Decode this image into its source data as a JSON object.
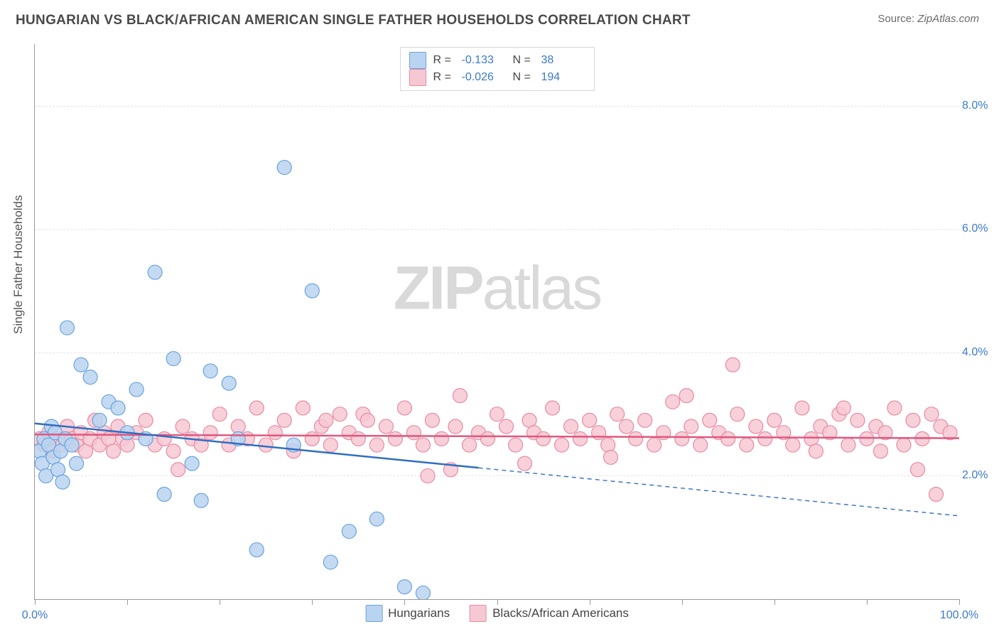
{
  "title": "HUNGARIAN VS BLACK/AFRICAN AMERICAN SINGLE FATHER HOUSEHOLDS CORRELATION CHART",
  "source_label": "Source:",
  "source_name": "ZipAtlas.com",
  "ylabel": "Single Father Households",
  "watermark_bold": "ZIP",
  "watermark_light": "atlas",
  "chart": {
    "type": "scatter-with-trend",
    "xlim": [
      0,
      100
    ],
    "ylim": [
      0,
      9
    ],
    "xticks": [
      0,
      10,
      20,
      30,
      40,
      50,
      60,
      70,
      80,
      90,
      100
    ],
    "xticklabels": {
      "0": "0.0%",
      "100": "100.0%"
    },
    "yticks": [
      2,
      4,
      6,
      8
    ],
    "yticklabels": [
      "2.0%",
      "4.0%",
      "6.0%",
      "8.0%"
    ],
    "background_color": "#ffffff",
    "grid_color": "#e4e4e4",
    "axis_color": "#9a9a9a",
    "tick_label_color": "#3b7ac9",
    "marker_radius": 10,
    "marker_stroke_width": 1.2,
    "trend_solid_width": 2.5,
    "trend_dash_width": 1.4,
    "trend_dash_pattern": "6,5",
    "series": [
      {
        "name": "Hungarians",
        "legend_label": "Hungarians",
        "fill": "#b9d4f0",
        "stroke": "#6aa3dd",
        "trend_color": "#2f6fc2",
        "R": "-0.133",
        "N": "38",
        "points": [
          [
            0.5,
            2.4
          ],
          [
            0.8,
            2.2
          ],
          [
            1.0,
            2.6
          ],
          [
            1.2,
            2.0
          ],
          [
            1.5,
            2.5
          ],
          [
            1.8,
            2.8
          ],
          [
            2.0,
            2.3
          ],
          [
            2.2,
            2.7
          ],
          [
            2.5,
            2.1
          ],
          [
            2.8,
            2.4
          ],
          [
            3.0,
            1.9
          ],
          [
            3.3,
            2.6
          ],
          [
            3.5,
            4.4
          ],
          [
            4.0,
            2.5
          ],
          [
            4.5,
            2.2
          ],
          [
            5.0,
            3.8
          ],
          [
            6.0,
            3.6
          ],
          [
            7.0,
            2.9
          ],
          [
            8.0,
            3.2
          ],
          [
            9.0,
            3.1
          ],
          [
            10.0,
            2.7
          ],
          [
            11.0,
            3.4
          ],
          [
            12.0,
            2.6
          ],
          [
            13.0,
            5.3
          ],
          [
            14.0,
            1.7
          ],
          [
            15.0,
            3.9
          ],
          [
            17.0,
            2.2
          ],
          [
            18.0,
            1.6
          ],
          [
            19.0,
            3.7
          ],
          [
            21.0,
            3.5
          ],
          [
            22.0,
            2.6
          ],
          [
            24.0,
            0.8
          ],
          [
            27.0,
            7.0
          ],
          [
            28.0,
            2.5
          ],
          [
            30.0,
            5.0
          ],
          [
            32.0,
            0.6
          ],
          [
            34.0,
            1.1
          ],
          [
            37.0,
            1.3
          ],
          [
            40.0,
            0.2
          ],
          [
            42.0,
            0.1
          ]
        ],
        "trend": {
          "y_at_x0": 2.85,
          "y_at_x100": 1.35,
          "solid_until_x": 48
        }
      },
      {
        "name": "Blacks/African Americans",
        "legend_label": "Blacks/African Americans",
        "fill": "#f6c8d3",
        "stroke": "#e88aa2",
        "trend_color": "#e0577f",
        "R": "-0.026",
        "N": "194",
        "points": [
          [
            0.5,
            2.6
          ],
          [
            1.0,
            2.5
          ],
          [
            1.5,
            2.7
          ],
          [
            2.0,
            2.4
          ],
          [
            2.5,
            2.6
          ],
          [
            3.0,
            2.5
          ],
          [
            3.5,
            2.8
          ],
          [
            4.0,
            2.6
          ],
          [
            4.5,
            2.5
          ],
          [
            5.0,
            2.7
          ],
          [
            5.5,
            2.4
          ],
          [
            6.0,
            2.6
          ],
          [
            6.5,
            2.9
          ],
          [
            7.0,
            2.5
          ],
          [
            7.5,
            2.7
          ],
          [
            8.0,
            2.6
          ],
          [
            8.5,
            2.4
          ],
          [
            9.0,
            2.8
          ],
          [
            9.5,
            2.6
          ],
          [
            10.0,
            2.5
          ],
          [
            11.0,
            2.7
          ],
          [
            12.0,
            2.9
          ],
          [
            13.0,
            2.5
          ],
          [
            14.0,
            2.6
          ],
          [
            15.0,
            2.4
          ],
          [
            15.5,
            2.1
          ],
          [
            16.0,
            2.8
          ],
          [
            17.0,
            2.6
          ],
          [
            18.0,
            2.5
          ],
          [
            19.0,
            2.7
          ],
          [
            20.0,
            3.0
          ],
          [
            21.0,
            2.5
          ],
          [
            22.0,
            2.8
          ],
          [
            23.0,
            2.6
          ],
          [
            24.0,
            3.1
          ],
          [
            25.0,
            2.5
          ],
          [
            26.0,
            2.7
          ],
          [
            27.0,
            2.9
          ],
          [
            28.0,
            2.4
          ],
          [
            29.0,
            3.1
          ],
          [
            30.0,
            2.6
          ],
          [
            31.0,
            2.8
          ],
          [
            31.5,
            2.9
          ],
          [
            32.0,
            2.5
          ],
          [
            33.0,
            3.0
          ],
          [
            34.0,
            2.7
          ],
          [
            35.0,
            2.6
          ],
          [
            35.5,
            3.0
          ],
          [
            36.0,
            2.9
          ],
          [
            37.0,
            2.5
          ],
          [
            38.0,
            2.8
          ],
          [
            39.0,
            2.6
          ],
          [
            40.0,
            3.1
          ],
          [
            41.0,
            2.7
          ],
          [
            42.0,
            2.5
          ],
          [
            42.5,
            2.0
          ],
          [
            43.0,
            2.9
          ],
          [
            44.0,
            2.6
          ],
          [
            45.0,
            2.1
          ],
          [
            45.5,
            2.8
          ],
          [
            46.0,
            3.3
          ],
          [
            47.0,
            2.5
          ],
          [
            48.0,
            2.7
          ],
          [
            49.0,
            2.6
          ],
          [
            50.0,
            3.0
          ],
          [
            51.0,
            2.8
          ],
          [
            52.0,
            2.5
          ],
          [
            53.0,
            2.2
          ],
          [
            53.5,
            2.9
          ],
          [
            54.0,
            2.7
          ],
          [
            55.0,
            2.6
          ],
          [
            56.0,
            3.1
          ],
          [
            57.0,
            2.5
          ],
          [
            58.0,
            2.8
          ],
          [
            59.0,
            2.6
          ],
          [
            60.0,
            2.9
          ],
          [
            61.0,
            2.7
          ],
          [
            62.0,
            2.5
          ],
          [
            62.3,
            2.3
          ],
          [
            63.0,
            3.0
          ],
          [
            64.0,
            2.8
          ],
          [
            65.0,
            2.6
          ],
          [
            66.0,
            2.9
          ],
          [
            67.0,
            2.5
          ],
          [
            68.0,
            2.7
          ],
          [
            69.0,
            3.2
          ],
          [
            70.0,
            2.6
          ],
          [
            70.5,
            3.3
          ],
          [
            71.0,
            2.8
          ],
          [
            72.0,
            2.5
          ],
          [
            73.0,
            2.9
          ],
          [
            74.0,
            2.7
          ],
          [
            75.0,
            2.6
          ],
          [
            75.5,
            3.8
          ],
          [
            76.0,
            3.0
          ],
          [
            77.0,
            2.5
          ],
          [
            78.0,
            2.8
          ],
          [
            79.0,
            2.6
          ],
          [
            80.0,
            2.9
          ],
          [
            81.0,
            2.7
          ],
          [
            82.0,
            2.5
          ],
          [
            83.0,
            3.1
          ],
          [
            84.0,
            2.6
          ],
          [
            84.5,
            2.4
          ],
          [
            85.0,
            2.8
          ],
          [
            86.0,
            2.7
          ],
          [
            87.0,
            3.0
          ],
          [
            87.5,
            3.1
          ],
          [
            88.0,
            2.5
          ],
          [
            89.0,
            2.9
          ],
          [
            90.0,
            2.6
          ],
          [
            91.0,
            2.8
          ],
          [
            91.5,
            2.4
          ],
          [
            92.0,
            2.7
          ],
          [
            93.0,
            3.1
          ],
          [
            94.0,
            2.5
          ],
          [
            95.0,
            2.9
          ],
          [
            95.5,
            2.1
          ],
          [
            96.0,
            2.6
          ],
          [
            97.0,
            3.0
          ],
          [
            97.5,
            1.7
          ],
          [
            98.0,
            2.8
          ],
          [
            99.0,
            2.7
          ]
        ],
        "trend": {
          "y_at_x0": 2.67,
          "y_at_x100": 2.61,
          "solid_until_x": 100
        }
      }
    ]
  }
}
